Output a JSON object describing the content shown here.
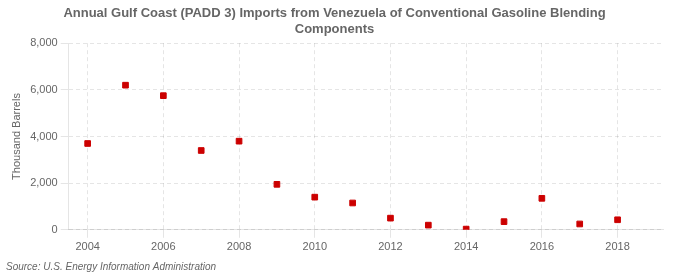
{
  "chart_data": {
    "type": "scatter",
    "title": "Annual Gulf Coast (PADD 3) Imports from Venezuela of Conventional Gasoline Blending\nComponents",
    "ylabel": "Thousand Barrels",
    "source": "Source: U.S. Energy Information Administration",
    "x": [
      2004,
      2005,
      2006,
      2007,
      2008,
      2009,
      2010,
      2011,
      2012,
      2013,
      2014,
      2015,
      2016,
      2017,
      2018
    ],
    "values": [
      3700,
      6200,
      5750,
      3400,
      3800,
      1950,
      1400,
      1150,
      500,
      200,
      30,
      350,
      1350,
      250,
      430
    ],
    "color": "#cc0000",
    "marker": "square",
    "xlim": [
      2003.5,
      2019.2
    ],
    "xticks": [
      2004,
      2006,
      2008,
      2010,
      2012,
      2014,
      2016,
      2018
    ],
    "ylim": [
      0,
      8000
    ],
    "yticks": [
      0,
      {
        "value": 2000,
        "label": "2,000"
      },
      {
        "value": 4000,
        "label": "4,000"
      },
      {
        "value": 6000,
        "label": "6,000"
      },
      {
        "value": 8000,
        "label": "8,000"
      }
    ],
    "grid": true
  }
}
